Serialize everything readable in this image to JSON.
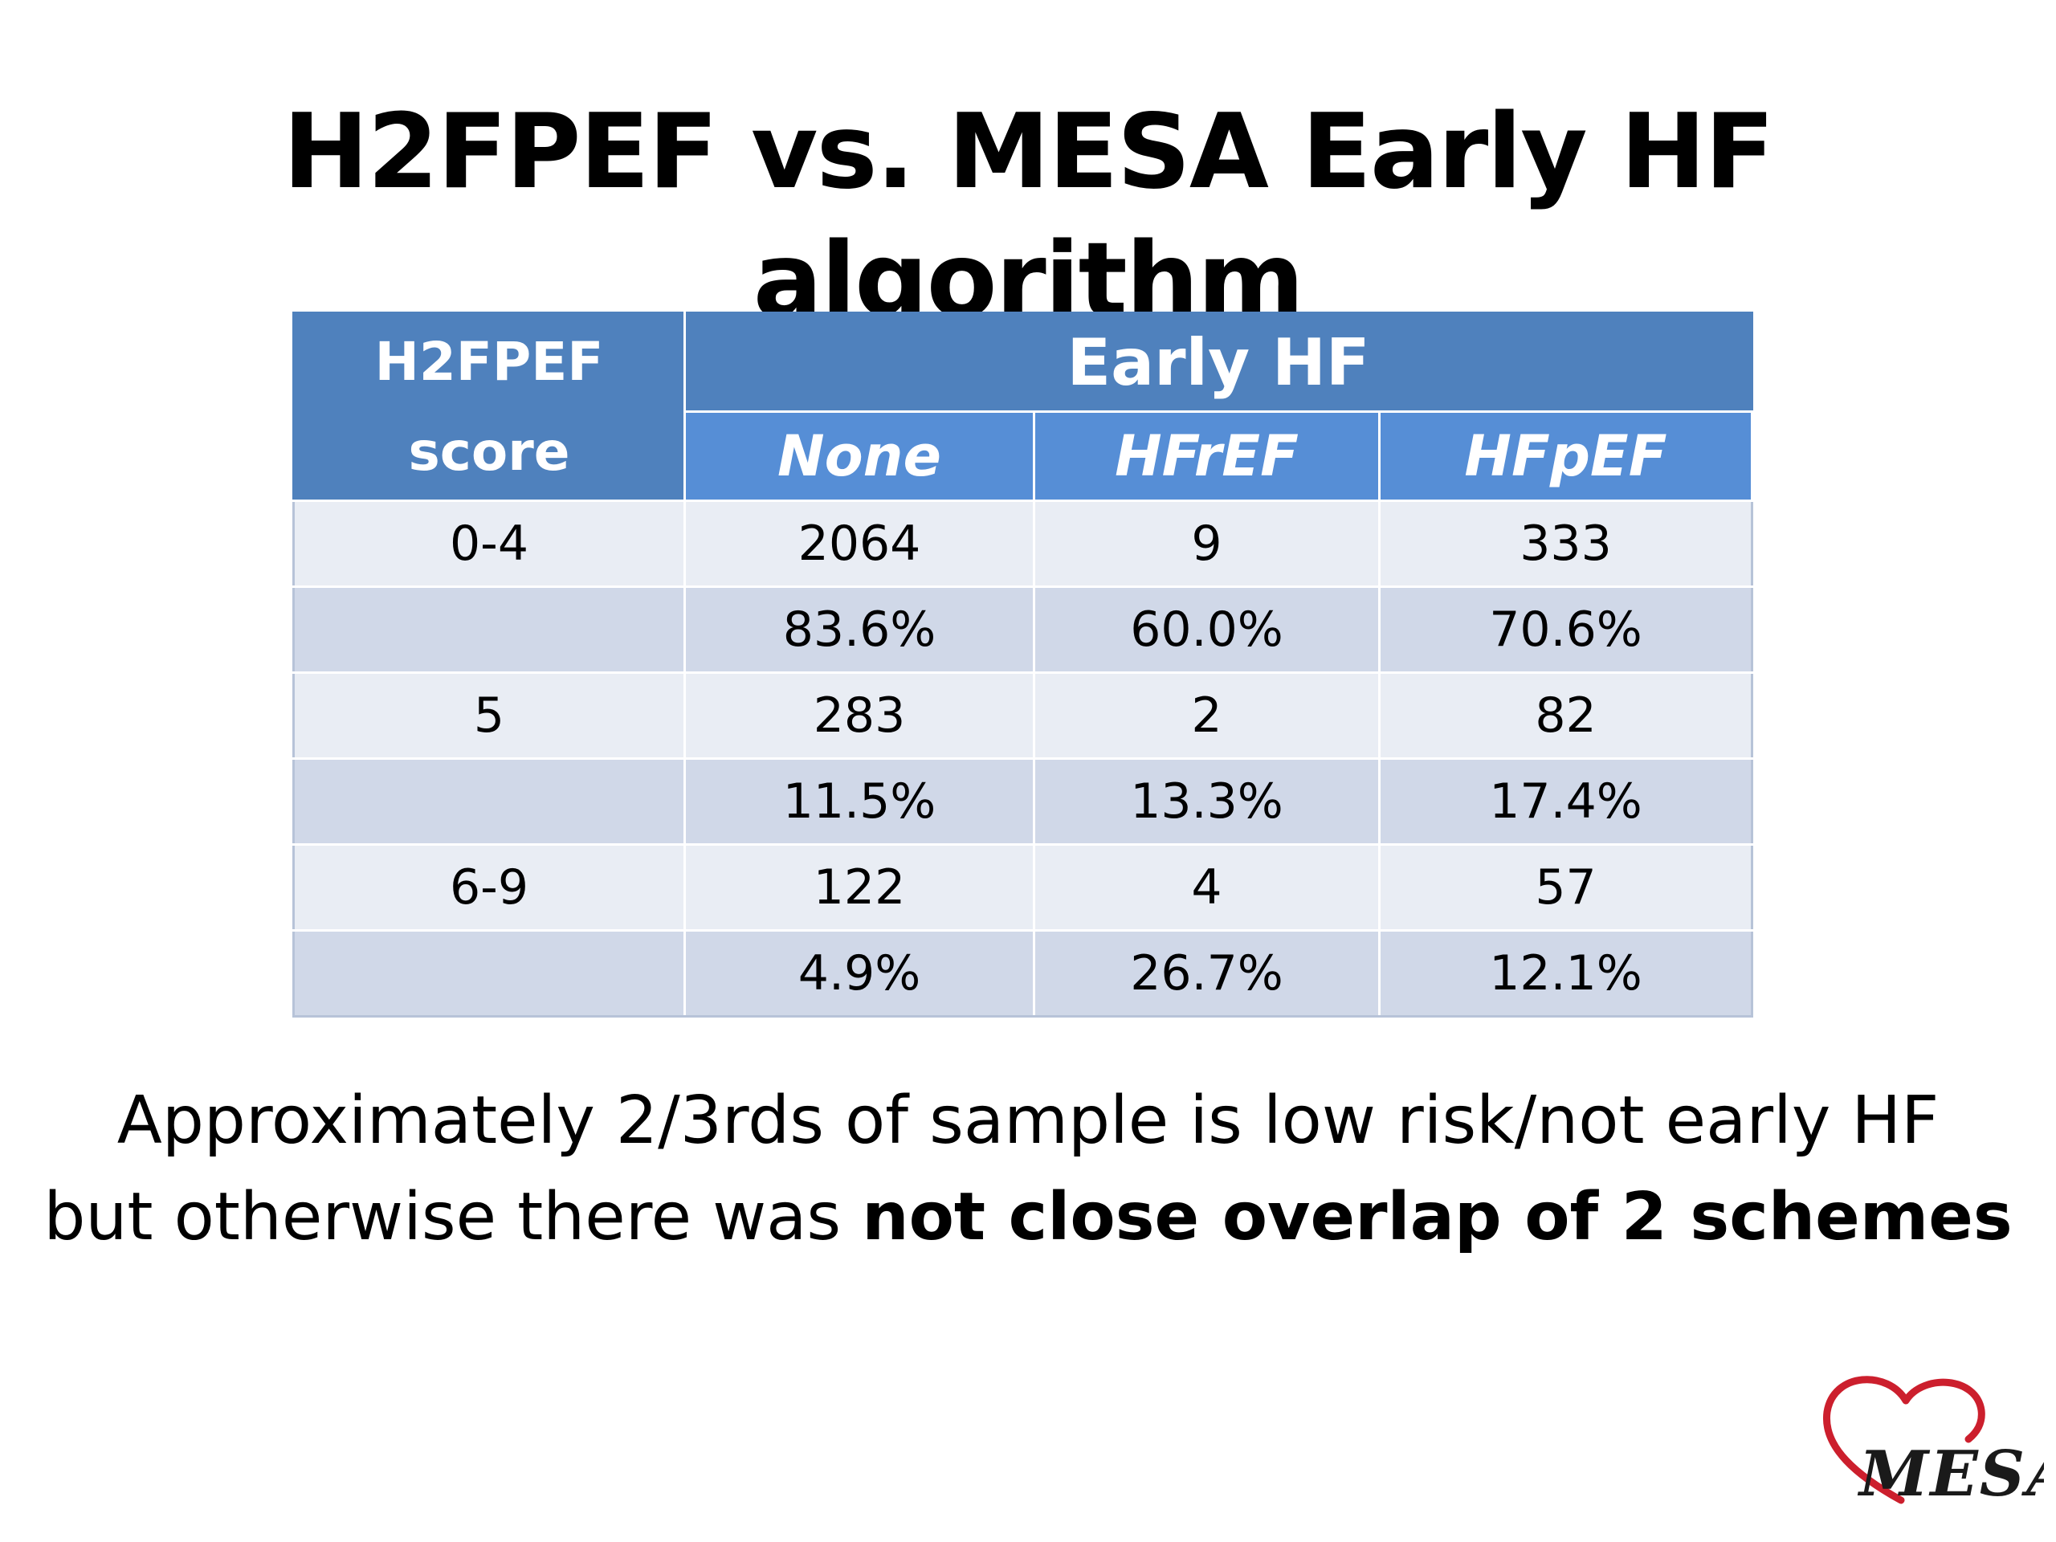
{
  "title": "H2FPEF vs. MESA Early HF algorithm",
  "table": {
    "score_header_line1": "H2FPEF",
    "score_header_line2": "score",
    "group_header": "Early HF",
    "sub_headers": [
      "None",
      "HFrEF",
      "HFpEF"
    ],
    "rows": [
      {
        "score": "0-4",
        "values": [
          "2064",
          "9",
          "333"
        ]
      },
      {
        "score": "",
        "values": [
          "83.6%",
          "60.0%",
          "70.6%"
        ]
      },
      {
        "score": "5",
        "values": [
          "283",
          "2",
          "82"
        ]
      },
      {
        "score": "",
        "values": [
          "11.5%",
          "13.3%",
          "17.4%"
        ]
      },
      {
        "score": "6-9",
        "values": [
          "122",
          "4",
          "57"
        ]
      },
      {
        "score": "",
        "values": [
          "4.9%",
          "26.7%",
          "12.1%"
        ]
      }
    ]
  },
  "caption": {
    "line1": "Approximately 2/3rds of sample is low risk/not early HF",
    "line2_plain": "but otherwise there was ",
    "line2_bold": "not close overlap of 2 schemes"
  },
  "logo": {
    "text": "MESA",
    "icon": "heart-icon",
    "heart_color": "#cc1f2d",
    "text_color": "#1a1a1a"
  },
  "colors": {
    "header_dark": "#4f81bd",
    "header_light": "#568ed6",
    "row_light": "#e9edf4",
    "row_dark": "#d0d8e8"
  }
}
